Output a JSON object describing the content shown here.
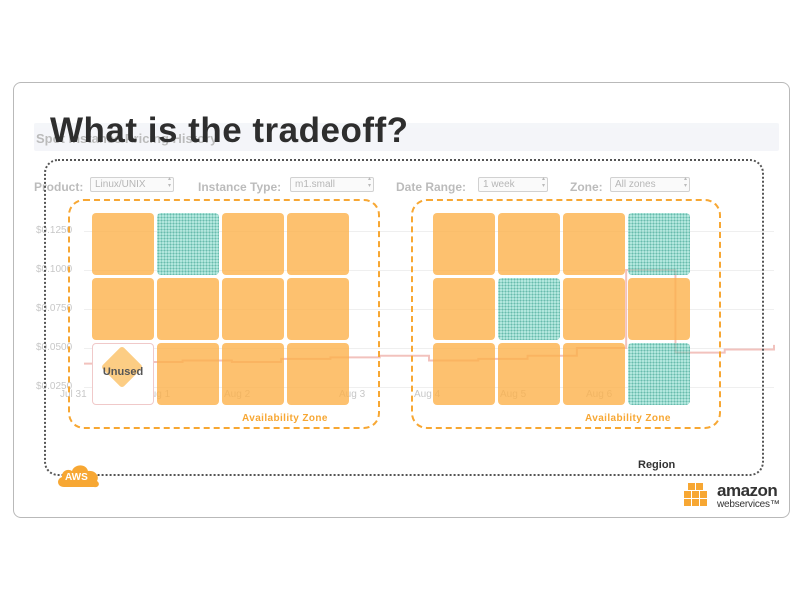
{
  "title": "What is the tradeoff?",
  "background_page": {
    "title": "Spot Instance Pricing History",
    "filters": [
      {
        "label": "Product:",
        "value": "Linux/UNIX"
      },
      {
        "label": "Instance Type:",
        "value": "m1.small"
      },
      {
        "label": "Date Range:",
        "value": "1 week"
      },
      {
        "label": "Zone:",
        "value": "All zones"
      }
    ]
  },
  "chart_data": {
    "type": "line",
    "title": "Spot Instance Pricing History",
    "y_ticks": [
      "$0.1250",
      "$0.1000",
      "$0.0750",
      "$0.0500",
      "$0.0250"
    ],
    "x_ticks": [
      "Jul 31",
      "Aug 1",
      "Aug 2",
      "Aug 3",
      "Aug 4",
      "Aug 5",
      "Aug 6"
    ],
    "ylim": [
      0.0,
      0.125
    ],
    "grid": true,
    "series": [
      {
        "values": [
          0.04,
          0.041,
          0.042,
          0.041,
          0.043,
          0.044,
          0.045,
          0.042,
          0.043,
          0.045,
          0.05,
          0.1,
          0.047,
          0.049,
          0.052
        ]
      }
    ]
  },
  "diagram": {
    "region_label": "Region",
    "availability_zone_label": "Availability Zone",
    "unused_label": "Unused",
    "zones": [
      {
        "name": "Availability Zone",
        "cells": [
          [
            "on",
            "spot",
            "on",
            "on"
          ],
          [
            "on",
            "on",
            "on",
            "on"
          ],
          [
            "unused",
            "on",
            "on",
            "on"
          ]
        ]
      },
      {
        "name": "Availability Zone",
        "cells": [
          [
            "on",
            "on",
            "on",
            "spot"
          ],
          [
            "on",
            "spot",
            "on",
            "on"
          ],
          [
            "on",
            "on",
            "on",
            "spot"
          ]
        ]
      }
    ]
  },
  "branding": {
    "aws_badge": "AWS",
    "logo_line1": "amazon",
    "logo_line2": "webservices™",
    "accent": "#f7a733",
    "spot_color": "#78d6c4"
  }
}
